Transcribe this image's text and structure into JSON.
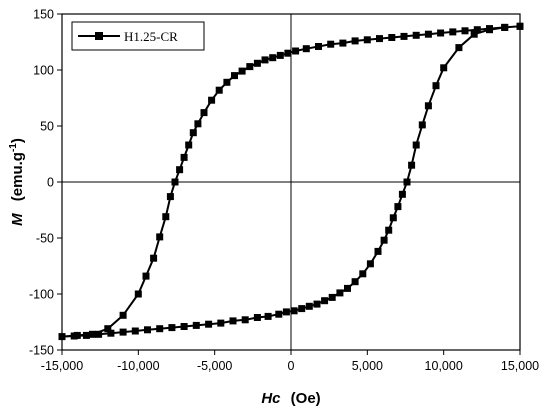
{
  "chart_data": {
    "type": "line",
    "xlabel_symbol": "Hc",
    "xlabel_unit": "(Oe)",
    "ylabel_symbol": "M",
    "ylabel_unit": "(emu.g",
    "ylabel_unit_sup": "-1",
    "ylabel_unit_end": ")",
    "xlim": [
      -15000,
      15000
    ],
    "ylim": [
      -150,
      150
    ],
    "x_ticks": [
      -15000,
      -10000,
      -5000,
      0,
      5000,
      10000,
      15000
    ],
    "x_tick_labels": [
      "-15,000",
      "-10,000",
      "-5,000",
      "0",
      "5,000",
      "10,000",
      "15,000"
    ],
    "y_ticks": [
      -150,
      -100,
      -50,
      0,
      50,
      100,
      150
    ],
    "y_tick_labels": [
      "-150",
      "-100",
      "-50",
      "0",
      "50",
      "100",
      "150"
    ],
    "zero_lines": true,
    "legend_position": "top-left",
    "series": [
      {
        "name": "H1.25-CR",
        "color": "#000000",
        "marker": "square",
        "points": [
          [
            15000,
            139
          ],
          [
            14000,
            138
          ],
          [
            13000,
            136
          ],
          [
            12000,
            132
          ],
          [
            11000,
            120
          ],
          [
            10000,
            102
          ],
          [
            9500,
            86
          ],
          [
            9000,
            68
          ],
          [
            8600,
            51
          ],
          [
            8200,
            33
          ],
          [
            7900,
            15
          ],
          [
            7600,
            0
          ],
          [
            7300,
            -11
          ],
          [
            7000,
            -22
          ],
          [
            6700,
            -32
          ],
          [
            6400,
            -43
          ],
          [
            6100,
            -52
          ],
          [
            5700,
            -62
          ],
          [
            5200,
            -73
          ],
          [
            4700,
            -82
          ],
          [
            4200,
            -89
          ],
          [
            3700,
            -95
          ],
          [
            3200,
            -99
          ],
          [
            2700,
            -103
          ],
          [
            2200,
            -106
          ],
          [
            1700,
            -109
          ],
          [
            1200,
            -111
          ],
          [
            700,
            -113
          ],
          [
            200,
            -115
          ],
          [
            -300,
            -116
          ],
          [
            -800,
            -118
          ],
          [
            -1500,
            -120
          ],
          [
            -2200,
            -121
          ],
          [
            -3000,
            -123
          ],
          [
            -3800,
            -124
          ],
          [
            -4600,
            -126
          ],
          [
            -5400,
            -127
          ],
          [
            -6200,
            -128
          ],
          [
            -7000,
            -129
          ],
          [
            -7800,
            -130
          ],
          [
            -8600,
            -131
          ],
          [
            -9400,
            -132
          ],
          [
            -10200,
            -133
          ],
          [
            -11000,
            -134
          ],
          [
            -11800,
            -135
          ],
          [
            -12600,
            -136
          ],
          [
            -13400,
            -137
          ],
          [
            -14200,
            -137.5
          ],
          [
            -15000,
            -138
          ],
          [
            -14000,
            -137
          ],
          [
            -13000,
            -136
          ],
          [
            -12000,
            -131
          ],
          [
            -11000,
            -119
          ],
          [
            -10000,
            -100
          ],
          [
            -9500,
            -84
          ],
          [
            -9000,
            -68
          ],
          [
            -8600,
            -49
          ],
          [
            -8200,
            -31
          ],
          [
            -7900,
            -13
          ],
          [
            -7600,
            0
          ],
          [
            -7300,
            11
          ],
          [
            -7000,
            22
          ],
          [
            -6700,
            33
          ],
          [
            -6400,
            44
          ],
          [
            -6100,
            52
          ],
          [
            -5700,
            62
          ],
          [
            -5200,
            73
          ],
          [
            -4700,
            82
          ],
          [
            -4200,
            89
          ],
          [
            -3700,
            95
          ],
          [
            -3200,
            99
          ],
          [
            -2700,
            103
          ],
          [
            -2200,
            106
          ],
          [
            -1700,
            109
          ],
          [
            -1200,
            111
          ],
          [
            -700,
            113
          ],
          [
            -200,
            115
          ],
          [
            300,
            117
          ],
          [
            1000,
            119
          ],
          [
            1800,
            121
          ],
          [
            2600,
            123
          ],
          [
            3400,
            124
          ],
          [
            4200,
            126
          ],
          [
            5000,
            127
          ],
          [
            5800,
            128
          ],
          [
            6600,
            129
          ],
          [
            7400,
            130
          ],
          [
            8200,
            131
          ],
          [
            9000,
            132
          ],
          [
            9800,
            133
          ],
          [
            10600,
            134
          ],
          [
            11400,
            135
          ],
          [
            12200,
            136
          ],
          [
            13000,
            137
          ],
          [
            14000,
            138
          ],
          [
            15000,
            139
          ]
        ]
      }
    ]
  }
}
